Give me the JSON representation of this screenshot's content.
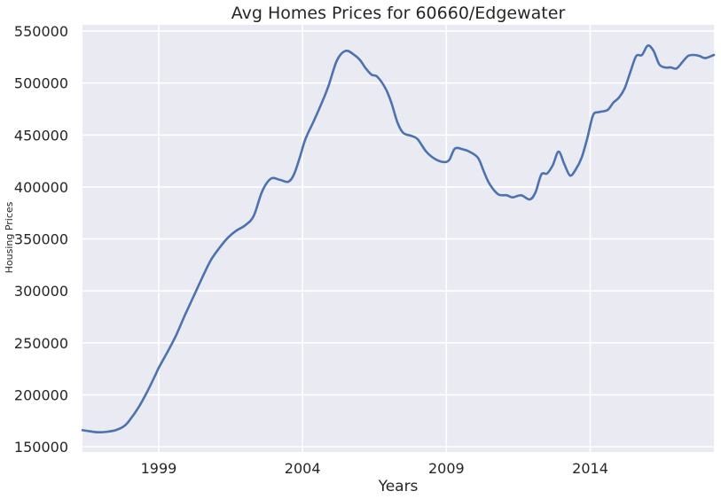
{
  "chart_data": {
    "type": "line",
    "title": "Avg Homes Prices for 60660/Edgewater",
    "xlabel": "Years",
    "ylabel": "Housing Prices",
    "xlim": [
      1996.35,
      2018.3
    ],
    "ylim": [
      145000,
      556000
    ],
    "x_ticks": [
      1999,
      2004,
      2009,
      2014
    ],
    "y_ticks": [
      150000,
      200000,
      250000,
      300000,
      350000,
      400000,
      450000,
      500000,
      550000
    ],
    "grid": true,
    "legend": "none",
    "colors": {
      "line": "#4c72b0",
      "background": "#eaeaf2",
      "grid": "#ffffff"
    },
    "series": [
      {
        "x": [
          1996.35,
          1996.6,
          1996.9,
          1997.2,
          1997.5,
          1997.8,
          1998.0,
          1998.3,
          1998.6,
          1998.9,
          1999.0,
          1999.3,
          1999.6,
          1999.9,
          2000.2,
          2000.5,
          2000.8,
          2001.1,
          2001.4,
          2001.7,
          2002.0,
          2002.3,
          2002.6,
          2002.9,
          2003.2,
          2003.5,
          2003.7,
          2003.9,
          2004.1,
          2004.4,
          2004.7,
          2004.9,
          2005.2,
          2005.5,
          2005.8,
          2006.0,
          2006.2,
          2006.4,
          2006.6,
          2006.9,
          2007.1,
          2007.3,
          2007.5,
          2007.8,
          2008.0,
          2008.3,
          2008.6,
          2008.9,
          2009.1,
          2009.3,
          2009.6,
          2009.8,
          2010.1,
          2010.3,
          2010.5,
          2010.8,
          2011.1,
          2011.3,
          2011.6,
          2011.9,
          2012.1,
          2012.3,
          2012.5,
          2012.7,
          2012.9,
          2013.1,
          2013.3,
          2013.5,
          2013.7,
          2013.9,
          2014.1,
          2014.3,
          2014.6,
          2014.8,
          2015.0,
          2015.2,
          2015.4,
          2015.6,
          2015.8,
          2016.0,
          2016.2,
          2016.4,
          2016.6,
          2016.8,
          2017.0,
          2017.2,
          2017.4,
          2017.6,
          2017.8,
          2018.0,
          2018.3
        ],
        "values": [
          166000,
          165000,
          164000,
          164500,
          166000,
          170000,
          176000,
          188000,
          203000,
          220000,
          226000,
          241000,
          257000,
          276000,
          294000,
          312000,
          329000,
          341000,
          351000,
          358000,
          363000,
          372000,
          396000,
          408000,
          407000,
          405000,
          412000,
          428000,
          446000,
          464000,
          483000,
          497000,
          522000,
          531000,
          527000,
          522000,
          514000,
          508000,
          506000,
          494000,
          480000,
          462000,
          452000,
          449000,
          446000,
          434000,
          427000,
          424000,
          426000,
          437000,
          436000,
          434000,
          428000,
          415000,
          403000,
          393000,
          392000,
          390000,
          392000,
          388000,
          395000,
          412000,
          413000,
          421000,
          434000,
          422000,
          411000,
          417000,
          428000,
          447000,
          469000,
          472000,
          474000,
          481000,
          486000,
          495000,
          511000,
          526000,
          527000,
          536000,
          531000,
          518000,
          515000,
          515000,
          514000,
          520000,
          526000,
          527000,
          526000,
          524000,
          527000
        ]
      }
    ]
  }
}
